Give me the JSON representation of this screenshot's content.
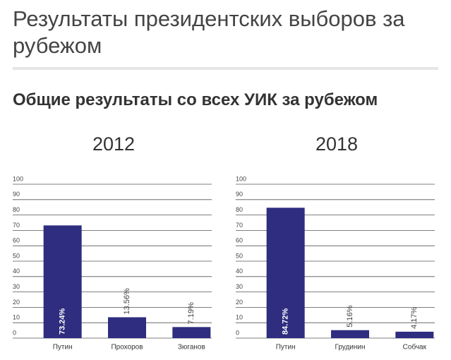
{
  "header": {
    "title": "Результаты президентских выборов за рубежом",
    "subtitle": "Общие результаты со всех УИК за рубежом"
  },
  "chart_data": [
    {
      "type": "bar",
      "title": "2012",
      "categories": [
        "Путин",
        "Прохоров",
        "Зюганов"
      ],
      "values": [
        73.24,
        13.56,
        7.19
      ],
      "value_labels": [
        "73.24%",
        "13.56%",
        "7.19%"
      ],
      "color": "#2e2d7f",
      "ylim": [
        0,
        100
      ],
      "yticks": [
        0,
        10,
        20,
        30,
        40,
        50,
        60,
        70,
        80,
        90,
        100
      ],
      "grid": true
    },
    {
      "type": "bar",
      "title": "2018",
      "categories": [
        "Путин",
        "Грудинин",
        "Собчак"
      ],
      "values": [
        84.72,
        5.16,
        4.17
      ],
      "value_labels": [
        "84.72%",
        "5.16%",
        "4.17%"
      ],
      "color": "#2e2d7f",
      "ylim": [
        0,
        100
      ],
      "yticks": [
        0,
        10,
        20,
        30,
        40,
        50,
        60,
        70,
        80,
        90,
        100
      ],
      "grid": true
    }
  ]
}
